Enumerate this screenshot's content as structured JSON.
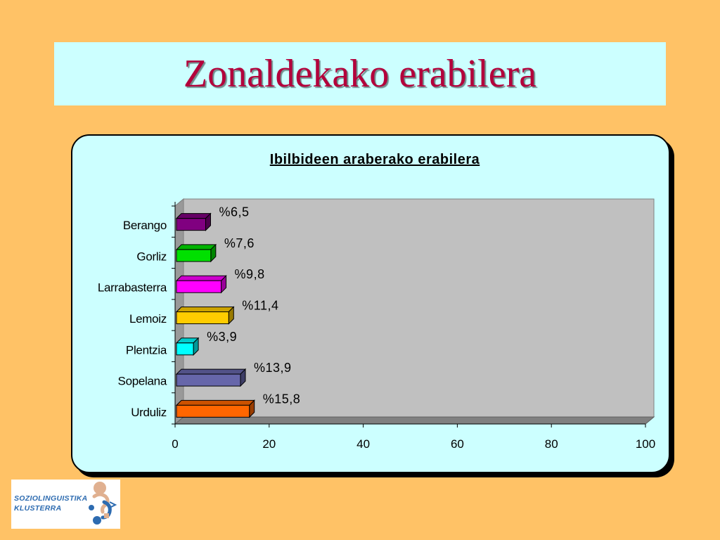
{
  "slide": {
    "title": "Zonaldekako erabilera"
  },
  "chart_data": {
    "type": "bar",
    "orientation": "horizontal",
    "title": "Ibilbideen araberako erabilera",
    "categories": [
      "Berango",
      "Gorliz",
      "Larrabasterra",
      "Lemoiz",
      "Plentzia",
      "Sopelana",
      "Urduliz"
    ],
    "values": [
      6.5,
      7.6,
      9.8,
      11.4,
      3.9,
      13.9,
      15.8
    ],
    "data_labels": [
      "%6,5",
      "%7,6",
      "%9,8",
      "%11,4",
      "%3,9",
      "%13,9",
      "%15,8"
    ],
    "colors": [
      "#800080",
      "#00E000",
      "#FF00FF",
      "#FFCC00",
      "#00FFFF",
      "#6666AA",
      "#FF6600"
    ],
    "xlim": [
      0,
      100
    ],
    "xticks": [
      0,
      20,
      40,
      60,
      80,
      100
    ],
    "xlabel": "",
    "ylabel": "",
    "grid": false,
    "style": "3d"
  },
  "logo": {
    "line1": "SOZIOLINGUISTIKA",
    "line2": "KLUSTERRA"
  }
}
